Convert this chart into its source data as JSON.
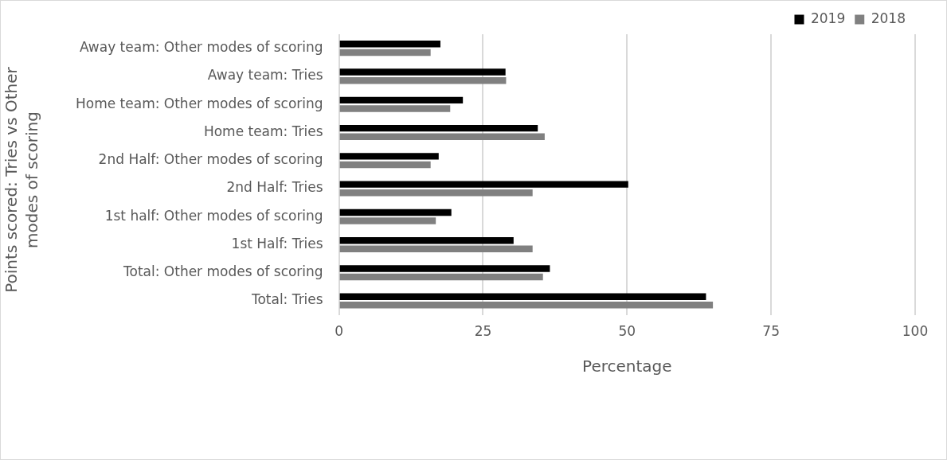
{
  "chart_data": {
    "type": "bar",
    "orientation": "horizontal",
    "xlabel": "Percentage",
    "ylabel": "Points scored: Tries vs Other modes of scoring",
    "categories": [
      "Away team: Other modes of scoring",
      "Away team: Tries",
      "Home team: Other modes of scoring",
      "Home team: Tries",
      "2nd Half: Other modes of scoring",
      "2nd Half: Tries",
      "1st half: Other modes of scoring",
      "1st Half: Tries",
      "Total: Other modes of scoring",
      "Total: Tries"
    ],
    "series": [
      {
        "name": "2019",
        "color": "#000000",
        "values": [
          17.6,
          28.9,
          21.5,
          34.5,
          17.3,
          50.2,
          19.5,
          30.3,
          36.6,
          63.7
        ]
      },
      {
        "name": "2018",
        "color": "#808080",
        "values": [
          15.9,
          29.0,
          19.3,
          35.7,
          15.9,
          33.6,
          16.8,
          33.6,
          35.4,
          64.9
        ]
      }
    ],
    "xlim": [
      0,
      100
    ],
    "xticks": [
      0,
      25,
      50,
      75,
      100
    ],
    "grid": "x",
    "legend": "top right"
  }
}
